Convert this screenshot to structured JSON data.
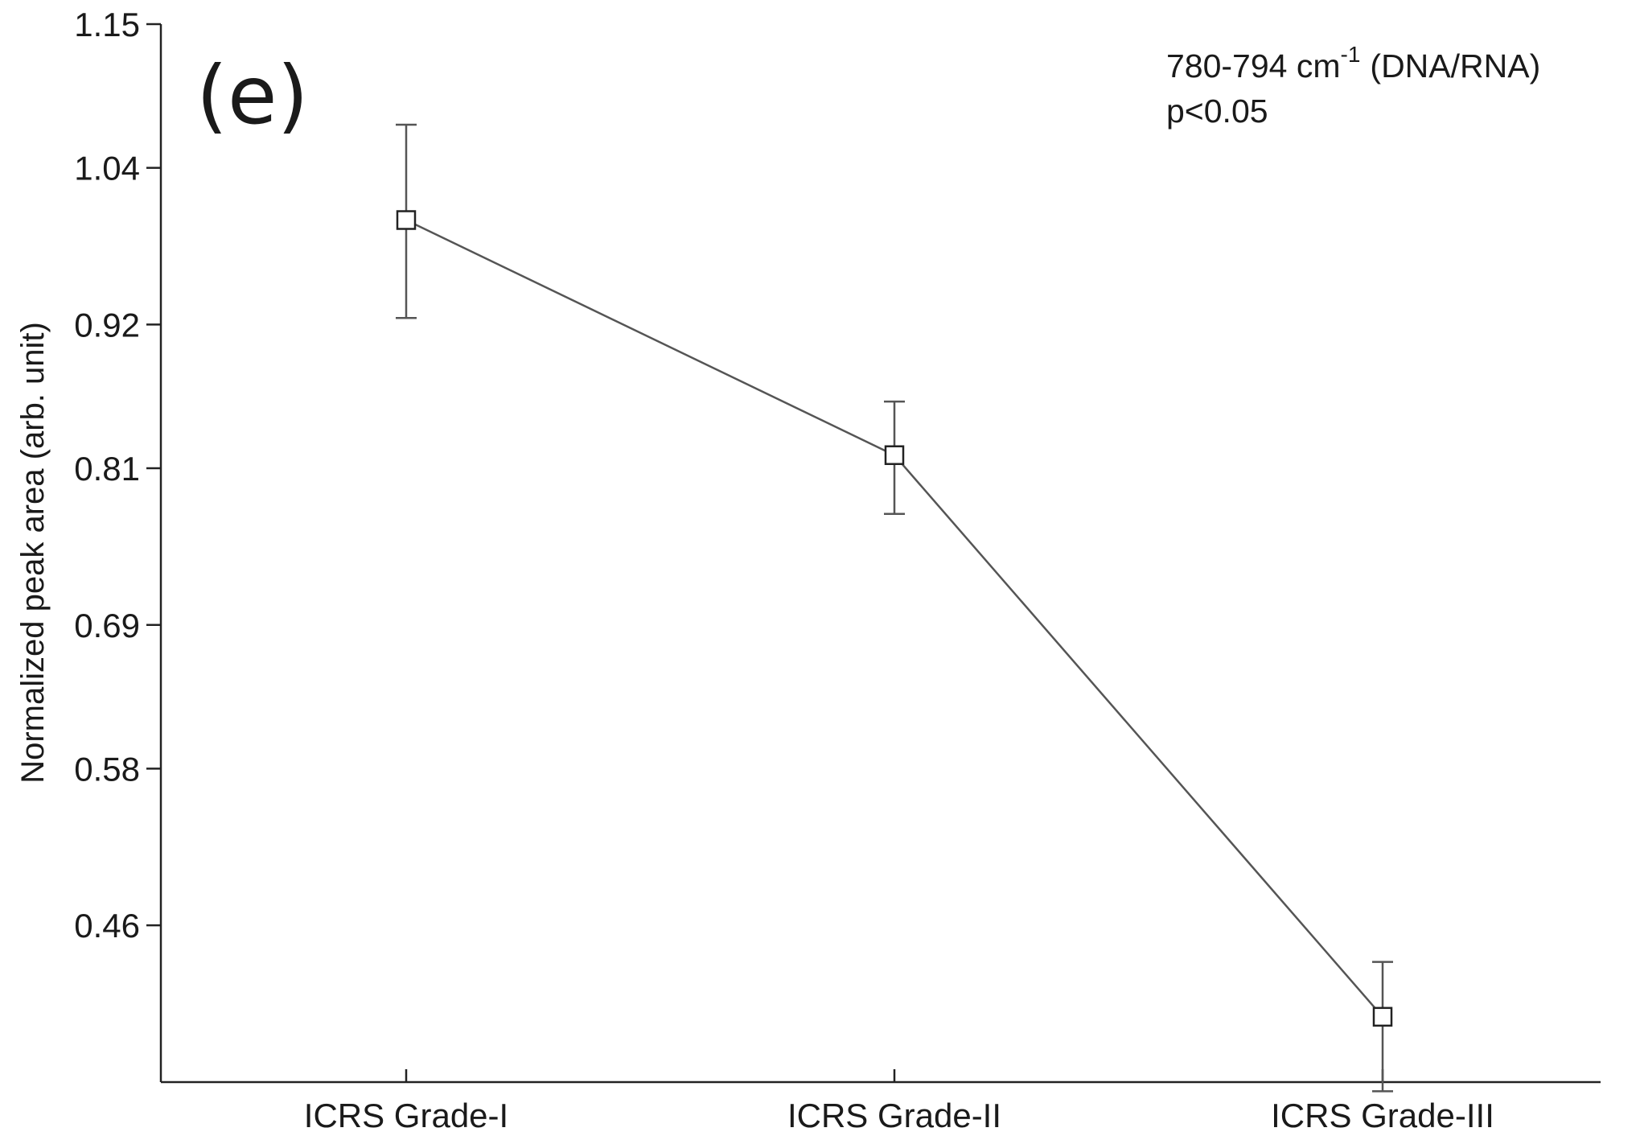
{
  "chart_data": {
    "type": "line",
    "panel_label": "(e)",
    "title": "",
    "xlabel": "",
    "ylabel": "Normalized peak area (arb. unit)",
    "categories": [
      "ICRS Grade-I",
      "ICRS Grade-II",
      "ICRS Grade-III"
    ],
    "series": [
      {
        "values": [
          1.0,
          0.82,
          0.39
        ],
        "error_low": [
          0.925,
          0.775,
          0.333
        ],
        "error_high": [
          1.073,
          0.861,
          0.432
        ],
        "color": "#555555",
        "marker": "open-square"
      }
    ],
    "ylim": [
      0.34,
      1.15
    ],
    "yticks": [
      0.46,
      0.58,
      0.69,
      0.81,
      0.92,
      1.04,
      1.15
    ],
    "ytick_labels": [
      "0.46",
      "0.58",
      "0.69",
      "0.81",
      "0.92",
      "1.04",
      "1.15"
    ],
    "annotations": {
      "range_text": "780-794 cm",
      "range_superscript": "-1",
      "assignment": "(DNA/RNA)",
      "pvalue": "p<0.05"
    },
    "grid": false,
    "legend": "none"
  }
}
